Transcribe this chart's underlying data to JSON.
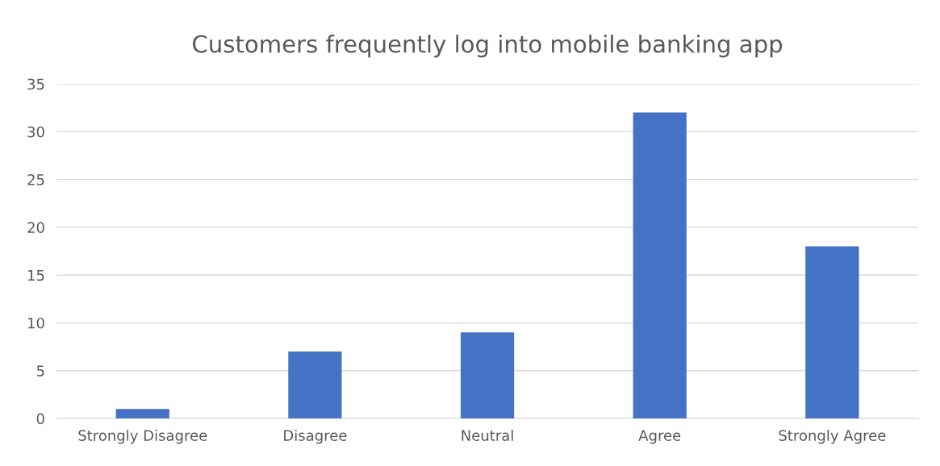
{
  "chart_data": {
    "type": "bar",
    "title": "Customers frequently log into mobile banking app",
    "categories": [
      "Strongly Disagree",
      "Disagree",
      "Neutral",
      "Agree",
      "Strongly Agree"
    ],
    "values": [
      1,
      7,
      9,
      32,
      18
    ],
    "color": "#4472c4",
    "ylim": [
      0,
      35
    ],
    "yticks": [
      0,
      5,
      10,
      15,
      20,
      25,
      30,
      35
    ],
    "grid": "y",
    "legend": false
  }
}
